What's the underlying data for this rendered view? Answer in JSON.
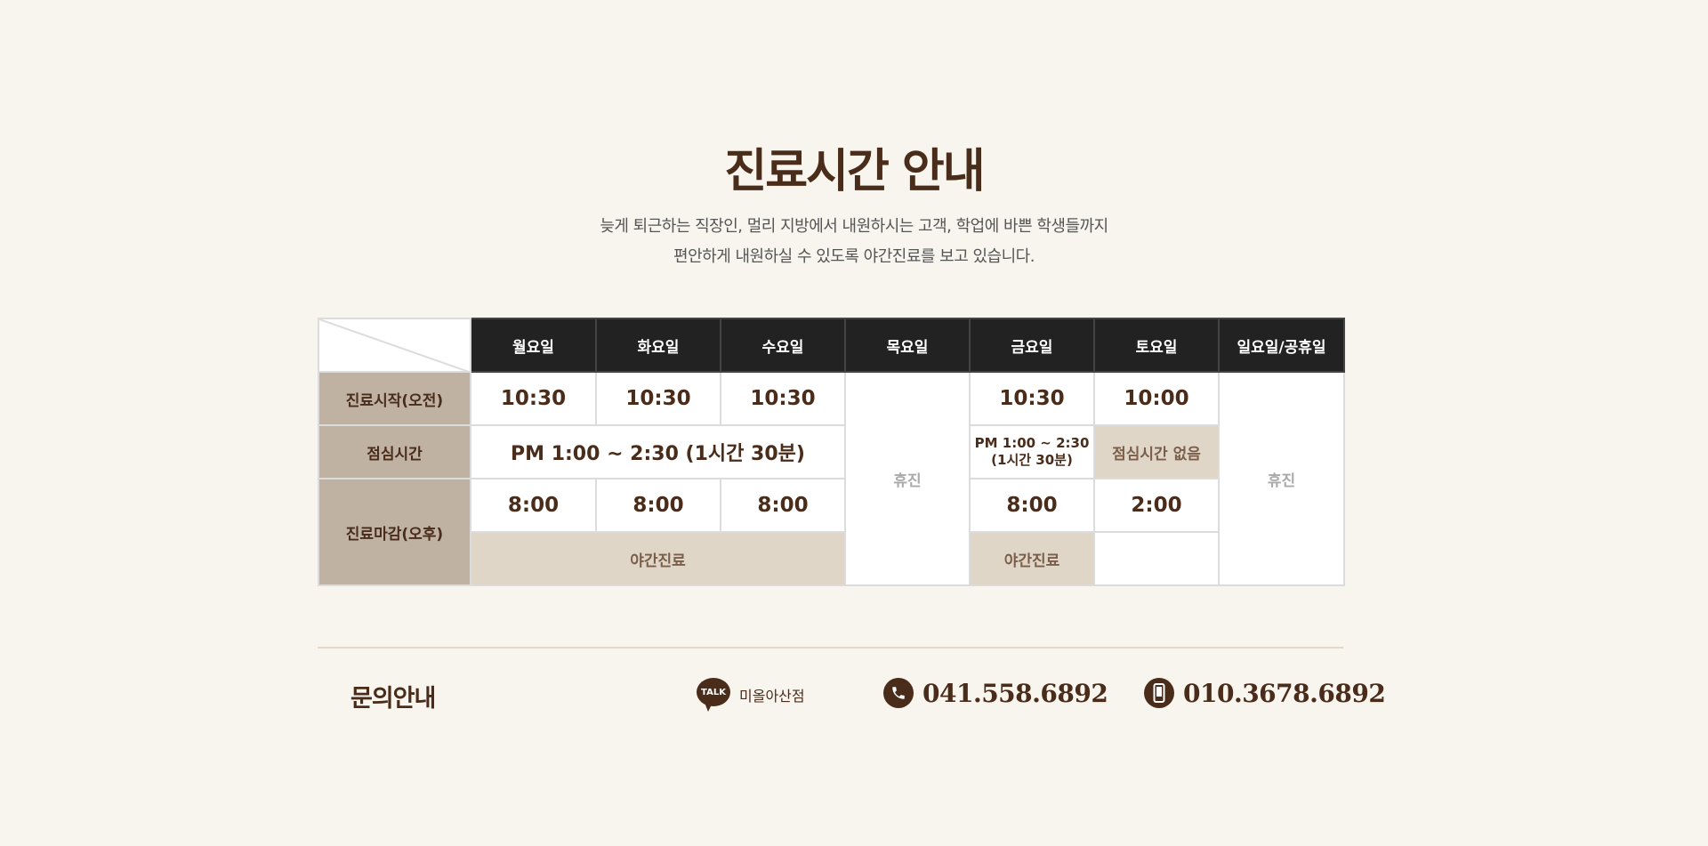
{
  "header": {
    "title": "진료시간 안내",
    "subtitle_lines": [
      "늦게 퇴근하는 직장인, 멀리 지방에서 내원하시는 고객, 학업에 바쁜 학생들까지",
      "편안하게 내원하실 수 있도록 야간진료를 보고 있습니다."
    ]
  },
  "schedule": {
    "days": [
      "월요일",
      "화요일",
      "수요일",
      "목요일",
      "금요일",
      "토요일",
      "일요일/공휴일"
    ],
    "rows": {
      "start_label": "진료시작(오전)",
      "lunch_label": "점심시간",
      "end_label": "진료마감(오후)"
    },
    "start_times": {
      "mon": "10:30",
      "tue": "10:30",
      "wed": "10:30",
      "fri": "10:30",
      "sat": "10:00"
    },
    "lunch_weekday": "PM 1:00 ~ 2:30 (1시간 30분)",
    "lunch_fri_line1": "PM 1:00 ~ 2:30",
    "lunch_fri_line2": "(1시간 30분)",
    "lunch_sat": "점심시간 없음",
    "end_times": {
      "mon": "8:00",
      "tue": "8:00",
      "wed": "8:00",
      "fri": "8:00",
      "sat": "2:00"
    },
    "night_label": "야간진료",
    "closed_label": "휴진"
  },
  "contact": {
    "title": "문의안내",
    "kakao_badge": "TALK",
    "kakao_id": "미올아산점",
    "phone": "041.558.6892",
    "mobile": "010.3678.6892"
  },
  "colors": {
    "brand_brown": "#4a2c1a",
    "header_bg": "#222222",
    "label_bg": "#bfb2a3",
    "highlight_bg": "#e0d6c8",
    "page_bg": "#f8f5ee"
  }
}
